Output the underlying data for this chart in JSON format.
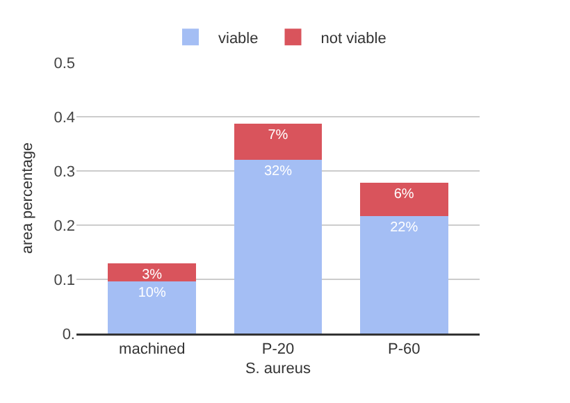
{
  "chart_data": {
    "type": "bar",
    "stacked": true,
    "xlabel": "S. aureus",
    "ylabel": "area percentage",
    "categories": [
      "machined",
      "P-20",
      "P-60"
    ],
    "series": [
      {
        "name": "viable",
        "color": "#a4bef4",
        "values": [
          0.096,
          0.321,
          0.217
        ],
        "value_labels": [
          "10%",
          "32%",
          "22%"
        ]
      },
      {
        "name": "not viable",
        "color": "#d9545c",
        "values": [
          0.033,
          0.066,
          0.061
        ],
        "value_labels": [
          "3%",
          "7%",
          "6%"
        ]
      }
    ],
    "ylim": [
      0,
      0.5
    ],
    "yticks": [
      {
        "value": 0,
        "label": "0."
      },
      0.1,
      0.2,
      0.3,
      0.4,
      0.5
    ],
    "grid": "y",
    "legend": "top"
  }
}
